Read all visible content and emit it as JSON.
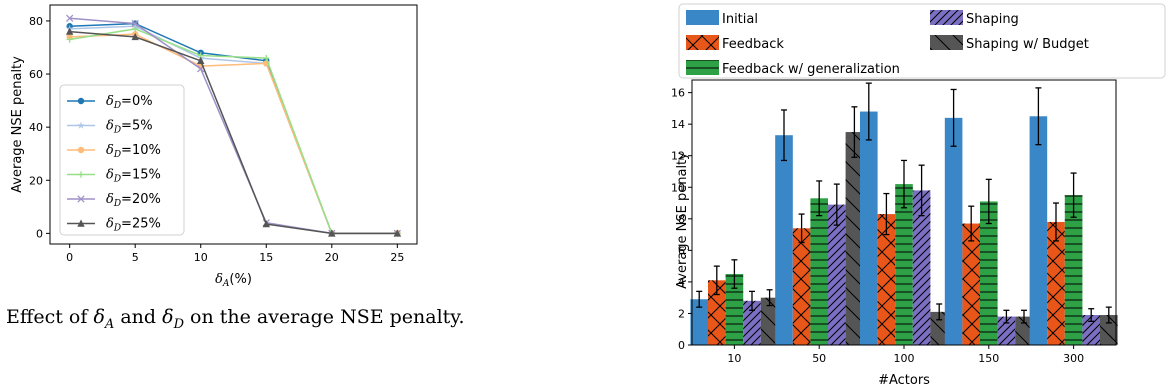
{
  "caption": {
    "prefix": "Effect of ",
    "sym1": "δ",
    "sub1": "A",
    "mid": " and ",
    "sym2": "δ",
    "sub2": "D",
    "suffix": " on the average NSE penalty."
  },
  "chart_data": [
    {
      "type": "line",
      "xlabel": {
        "sym": "δ",
        "sub": "A",
        "rest": "(%)"
      },
      "ylabel": "Average NSE penalty",
      "x": [
        0,
        5,
        10,
        15,
        20,
        25
      ],
      "xticks": [
        "0",
        "5",
        "10",
        "15",
        "20",
        "25"
      ],
      "yticks": [
        "0",
        "20",
        "40",
        "60",
        "80"
      ],
      "xlim": [
        -1.5,
        26.5
      ],
      "ylim": [
        -4,
        86
      ],
      "grid": false,
      "legend_position": "center-left",
      "series": [
        {
          "name": {
            "sym": "δ",
            "sub": "D",
            "rest": "=0%"
          },
          "values": [
            78,
            79,
            68,
            65,
            0,
            0
          ],
          "color": "#1f77b4",
          "marker": "circle"
        },
        {
          "name": {
            "sym": "δ",
            "sub": "D",
            "rest": "=5%"
          },
          "values": [
            77,
            78,
            66,
            64,
            0,
            0
          ],
          "color": "#aec7e8",
          "marker": "star"
        },
        {
          "name": {
            "sym": "δ",
            "sub": "D",
            "rest": "=10%"
          },
          "values": [
            74,
            75,
            63,
            64,
            0,
            0
          ],
          "color": "#ffbb78",
          "marker": "circle"
        },
        {
          "name": {
            "sym": "δ",
            "sub": "D",
            "rest": "=15%"
          },
          "values": [
            73,
            77,
            67,
            66,
            0,
            0
          ],
          "color": "#98df8a",
          "marker": "plus"
        },
        {
          "name": {
            "sym": "δ",
            "sub": "D",
            "rest": "=20%"
          },
          "values": [
            81,
            79,
            62,
            4,
            0,
            0
          ],
          "color": "#9e91c8",
          "marker": "x"
        },
        {
          "name": {
            "sym": "δ",
            "sub": "D",
            "rest": "=25%"
          },
          "values": [
            76,
            74,
            65,
            3.5,
            0,
            0
          ],
          "color": "#555555",
          "marker": "triangle"
        }
      ]
    },
    {
      "type": "bar",
      "xlabel": "#Actors",
      "ylabel": "Average NSE penalty",
      "categories": [
        "10",
        "50",
        "100",
        "150",
        "300"
      ],
      "yticks": [
        "0",
        "2",
        "4",
        "6",
        "8",
        "10",
        "12",
        "14",
        "16"
      ],
      "ylim": [
        0,
        16.8
      ],
      "grid": false,
      "legend_position": "top",
      "series": [
        {
          "name": "Initial",
          "values": [
            2.9,
            13.3,
            14.8,
            14.4,
            14.5
          ],
          "errors": [
            0.5,
            1.6,
            1.8,
            1.8,
            1.8
          ],
          "color": "#3a87c8",
          "hatch": "none"
        },
        {
          "name": "Feedback",
          "values": [
            4.1,
            7.4,
            8.3,
            7.7,
            7.8
          ],
          "errors": [
            0.9,
            0.9,
            1.3,
            1.1,
            1.2
          ],
          "color": "#e8561a",
          "hatch": "cross"
        },
        {
          "name": "Feedback w/ generalization",
          "values": [
            4.5,
            9.3,
            10.2,
            9.1,
            9.5
          ],
          "errors": [
            0.9,
            1.1,
            1.5,
            1.4,
            1.4
          ],
          "color": "#2ea045",
          "hatch": "horizontal"
        },
        {
          "name": "Shaping",
          "values": [
            2.8,
            8.9,
            9.8,
            1.8,
            1.9
          ],
          "errors": [
            0.6,
            1.3,
            1.6,
            0.4,
            0.4
          ],
          "color": "#7b6fc4",
          "hatch": "diagonal"
        },
        {
          "name": "Shaping w/ Budget",
          "values": [
            3.0,
            13.5,
            2.1,
            1.8,
            1.9
          ],
          "errors": [
            0.5,
            1.6,
            0.5,
            0.4,
            0.5
          ],
          "color": "#555555",
          "hatch": "backslash"
        }
      ]
    }
  ]
}
